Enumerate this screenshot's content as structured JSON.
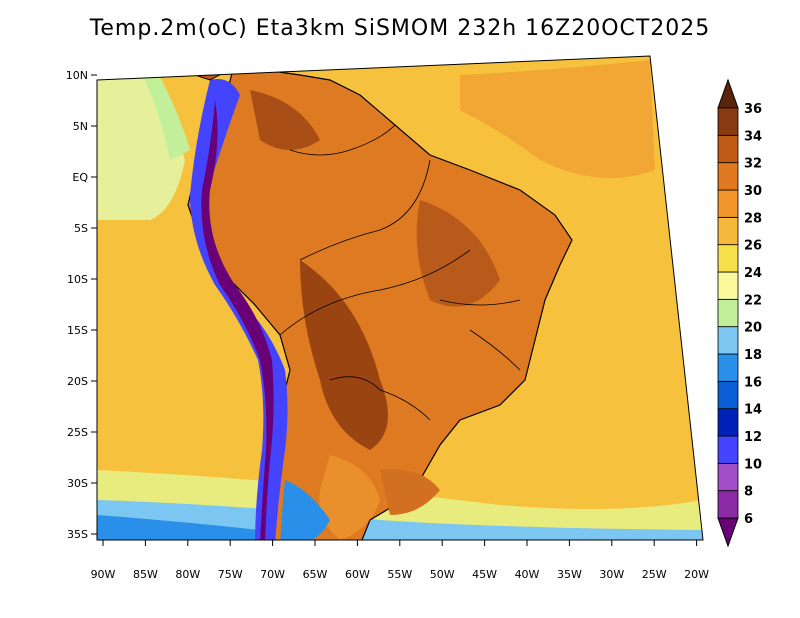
{
  "title": "Temp.2m(oC) Eta3km SiSMOM 232h 16Z20OCT2025",
  "lon_ticks": [
    "90W",
    "85W",
    "80W",
    "75W",
    "70W",
    "65W",
    "60W",
    "55W",
    "50W",
    "45W",
    "40W",
    "35W",
    "30W",
    "25W",
    "20W"
  ],
  "lat_ticks": [
    "10N",
    "5N",
    "EQ",
    "5S",
    "10S",
    "15S",
    "20S",
    "25S",
    "30S",
    "35S"
  ],
  "colorbar": {
    "labels": [
      "6",
      "8",
      "10",
      "12",
      "14",
      "16",
      "18",
      "20",
      "22",
      "24",
      "26",
      "28",
      "30",
      "32",
      "34",
      "36"
    ],
    "colors": [
      "#6a0078",
      "#8a2aa5",
      "#a24ec8",
      "#4444ff",
      "#0022b8",
      "#0a5fd8",
      "#2a8fe8",
      "#7cc6f2",
      "#c2f09a",
      "#fafa9a",
      "#f6e04c",
      "#f6b83a",
      "#f2952a",
      "#e07820",
      "#c05a14",
      "#8a3a10",
      "#5a240a"
    ]
  },
  "map": {
    "ocean_color": "#f6c23e",
    "coast_color": "#000000",
    "land_fill": "#dd7a22"
  }
}
